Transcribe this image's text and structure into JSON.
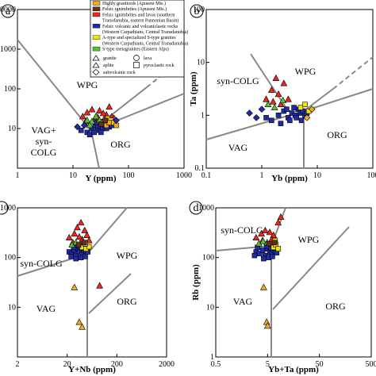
{
  "legend": {
    "entries": [
      {
        "label": "Highly granitoids (Apuseni Mts.)",
        "color": "#f5a623"
      },
      {
        "label": "Felsic ignimbrites (Apuseni Mts.)",
        "color": "#6b2d1a"
      },
      {
        "label": "Felsic ignimbrites and lavas (southern",
        "color": "#e8291c"
      },
      {
        "label": "Transdanubia, eastern Pannonian Basin)",
        "color": ""
      },
      {
        "label": "Felsic volcanic and volcaniclastic rocks",
        "color": "#1f2ba8"
      },
      {
        "label": "(Western Carpathians, Central Transdanubia)",
        "color": ""
      },
      {
        "label": "A-type and specialized S-type granites",
        "color": "#f2e600"
      },
      {
        "label": "(Western Carpathians, Central Transdanubia)",
        "color": ""
      },
      {
        "label": "S-type metagranites (Eastern Alps)",
        "color": "#56c43a"
      }
    ],
    "symbols": [
      {
        "shape": "triangle",
        "label": "granite"
      },
      {
        "shape": "circle",
        "label": "lava"
      },
      {
        "shape": "triangle",
        "label": "aplite"
      },
      {
        "shape": "square",
        "label": "pyroclastic rock"
      },
      {
        "shape": "diamond",
        "label": "subvolcanic rock"
      }
    ]
  },
  "chart_data": [
    {
      "type": "scatter",
      "panel_letter": "a",
      "xlabel": "Y (ppm)",
      "ylabel": "",
      "xscale": "log",
      "yscale": "log",
      "xlim": [
        1,
        1000
      ],
      "ylim": [
        1,
        10000
      ],
      "xticks": [
        "1",
        "10",
        "100",
        "1000"
      ],
      "yticks": [
        "",
        "10",
        "100",
        "1000",
        "10000"
      ],
      "fields": [
        "WPG",
        "VAG+",
        "syn-",
        "COLG",
        "ORG"
      ],
      "series": [
        {
          "color": "#1f2ba8",
          "marker": "square",
          "points": [
            [
              14,
              9
            ],
            [
              18,
              8
            ],
            [
              22,
              10
            ],
            [
              25,
              12
            ],
            [
              28,
              11
            ],
            [
              30,
              9
            ],
            [
              34,
              10
            ],
            [
              38,
              12
            ],
            [
              42,
              14
            ],
            [
              45,
              11
            ],
            [
              48,
              13
            ],
            [
              20,
              7
            ],
            [
              24,
              8
            ],
            [
              32,
              8
            ],
            [
              36,
              15
            ],
            [
              40,
              10
            ],
            [
              50,
              12
            ],
            [
              55,
              15
            ],
            [
              26,
              14
            ],
            [
              44,
              16
            ]
          ]
        },
        {
          "color": "#e8291c",
          "marker": "triangle",
          "points": [
            [
              15,
              20
            ],
            [
              18,
              25
            ],
            [
              22,
              30
            ],
            [
              30,
              28
            ],
            [
              40,
              22
            ],
            [
              45,
              35
            ],
            [
              25,
              18
            ],
            [
              35,
              24
            ],
            [
              50,
              20
            ],
            [
              55,
              18
            ],
            [
              17,
              15
            ],
            [
              28,
              19
            ]
          ]
        },
        {
          "color": "#56c43a",
          "marker": "triangle",
          "points": [
            [
              18,
              16
            ],
            [
              22,
              15
            ],
            [
              26,
              20
            ],
            [
              30,
              16
            ],
            [
              20,
              12
            ]
          ]
        },
        {
          "color": "#f2e600",
          "marker": "square",
          "points": [
            [
              35,
              14
            ],
            [
              42,
              18
            ],
            [
              48,
              16
            ],
            [
              55,
              14
            ]
          ]
        },
        {
          "color": "#f5a623",
          "marker": "square",
          "points": [
            [
              40,
              12
            ],
            [
              45,
              14
            ],
            [
              60,
              12
            ]
          ]
        },
        {
          "color": "#6b2d1a",
          "marker": "square",
          "points": [
            [
              32,
              13
            ],
            [
              38,
              16
            ]
          ]
        },
        {
          "color": "#1f2ba8",
          "marker": "diamond",
          "points": [
            [
              12,
              11
            ],
            [
              16,
              12
            ],
            [
              60,
              16
            ]
          ]
        }
      ]
    },
    {
      "type": "scatter",
      "panel_letter": "b",
      "xlabel": "Yb (ppm)",
      "ylabel": "Ta (ppm)",
      "xscale": "log",
      "yscale": "log",
      "xlim": [
        0.1,
        100
      ],
      "ylim": [
        0.1,
        100
      ],
      "xticks": [
        "0.1",
        "1",
        "10",
        "100"
      ],
      "yticks": [
        "0.1",
        "1",
        "10",
        "100"
      ],
      "fields": [
        "syn-COLG",
        "WPG",
        "VAG",
        "ORG"
      ],
      "series": [
        {
          "color": "#1f2ba8",
          "marker": "square",
          "points": [
            [
              1.5,
              0.8
            ],
            [
              2,
              1
            ],
            [
              2.5,
              1.2
            ],
            [
              3,
              0.9
            ],
            [
              3.5,
              1.1
            ],
            [
              4,
              1
            ],
            [
              4.5,
              1.3
            ],
            [
              5,
              1.1
            ],
            [
              5.5,
              1.2
            ],
            [
              6,
              1
            ],
            [
              2.2,
              0.7
            ],
            [
              3.2,
              0.8
            ],
            [
              4.2,
              0.9
            ],
            [
              5.2,
              0.8
            ],
            [
              6.5,
              1.1
            ],
            [
              3.8,
              1.4
            ],
            [
              2.8,
              1.3
            ],
            [
              1.2,
              0.9
            ]
          ]
        },
        {
          "color": "#e8291c",
          "marker": "triangle",
          "points": [
            [
              1.2,
              2
            ],
            [
              1.5,
              3
            ],
            [
              2,
              2.5
            ],
            [
              2.5,
              4
            ],
            [
              1.8,
              5
            ],
            [
              3,
              2
            ],
            [
              1.6,
              1.8
            ],
            [
              2.2,
              1.6
            ]
          ]
        },
        {
          "color": "#56c43a",
          "marker": "triangle",
          "points": [
            [
              1.3,
              1.6
            ],
            [
              1.7,
              1.4
            ],
            [
              2.4,
              1.9
            ]
          ]
        },
        {
          "color": "#f2e600",
          "marker": "square",
          "points": [
            [
              5,
              1.4
            ],
            [
              6,
              1.6
            ],
            [
              7,
              1.2
            ]
          ]
        },
        {
          "color": "#f5a623",
          "marker": "diamond",
          "points": [
            [
              8,
              1.3
            ],
            [
              6.5,
              0.9
            ]
          ]
        },
        {
          "color": "#1f2ba8",
          "marker": "diamond",
          "points": [
            [
              0.6,
              1.1
            ],
            [
              0.8,
              0.9
            ],
            [
              1,
              1.3
            ]
          ]
        }
      ]
    },
    {
      "type": "scatter",
      "panel_letter": "c",
      "xlabel": "Y+Nb (ppm)",
      "ylabel": "",
      "xscale": "log",
      "yscale": "log",
      "xlim": [
        2,
        2000
      ],
      "ylim": [
        1,
        1000
      ],
      "xticks": [
        "2",
        "20",
        "200",
        "2000"
      ],
      "yticks": [
        "",
        "10",
        "100",
        "1000"
      ],
      "fields": [
        "syn-COLG",
        "WPG",
        "VAG",
        "ORG"
      ],
      "series": [
        {
          "color": "#1f2ba8",
          "marker": "square",
          "points": [
            [
              22,
              130
            ],
            [
              25,
              120
            ],
            [
              28,
              140
            ],
            [
              30,
              110
            ],
            [
              33,
              150
            ],
            [
              36,
              130
            ],
            [
              40,
              120
            ],
            [
              44,
              140
            ],
            [
              48,
              135
            ],
            [
              52,
              130
            ],
            [
              27,
              160
            ],
            [
              35,
              170
            ],
            [
              42,
              155
            ],
            [
              30,
              95
            ],
            [
              38,
              100
            ],
            [
              46,
              105
            ],
            [
              24,
              105
            ]
          ]
        },
        {
          "color": "#e8291c",
          "marker": "triangle",
          "points": [
            [
              22,
              250
            ],
            [
              28,
              300
            ],
            [
              32,
              400
            ],
            [
              38,
              500
            ],
            [
              45,
              350
            ],
            [
              50,
              280
            ],
            [
              26,
              200
            ],
            [
              40,
              230
            ],
            [
              55,
              220
            ],
            [
              35,
              260
            ]
          ]
        },
        {
          "color": "#56c43a",
          "marker": "triangle",
          "points": [
            [
              25,
              180
            ],
            [
              30,
              200
            ],
            [
              36,
              190
            ],
            [
              42,
              175
            ]
          ]
        },
        {
          "color": "#f2e600",
          "marker": "square",
          "points": [
            [
              40,
              160
            ],
            [
              48,
              150
            ],
            [
              55,
              165
            ],
            [
              46,
              190
            ]
          ]
        },
        {
          "color": "#f5a623",
          "marker": "triangle",
          "points": [
            [
              28,
              25
            ],
            [
              35,
              5
            ],
            [
              40,
              4
            ]
          ]
        },
        {
          "color": "#6b2d1a",
          "marker": "square",
          "points": [
            [
              34,
              180
            ],
            [
              44,
              200
            ]
          ]
        },
        {
          "color": "#e8291c",
          "marker": "triangle",
          "points": [
            [
              90,
              27
            ]
          ]
        }
      ]
    },
    {
      "type": "scatter",
      "panel_letter": "d",
      "xlabel": "Yb+Ta (ppm)",
      "ylabel": "Rb (ppm)",
      "xscale": "log",
      "yscale": "log",
      "xlim": [
        0.5,
        500
      ],
      "ylim": [
        1,
        1000
      ],
      "xticks": [
        "0.5",
        "5",
        "50",
        "500"
      ],
      "yticks": [
        "1",
        "10",
        "100",
        "1000"
      ],
      "fields": [
        "syn-COLG",
        "WPG",
        "VAG",
        "ORG"
      ],
      "series": [
        {
          "color": "#1f2ba8",
          "marker": "square",
          "points": [
            [
              3,
              130
            ],
            [
              3.5,
              120
            ],
            [
              4,
              140
            ],
            [
              4.5,
              110
            ],
            [
              5,
              150
            ],
            [
              5.5,
              130
            ],
            [
              6,
              120
            ],
            [
              6.5,
              140
            ],
            [
              7,
              135
            ],
            [
              3.2,
              160
            ],
            [
              4.8,
              170
            ],
            [
              5.8,
              155
            ],
            [
              4.2,
              95
            ],
            [
              5.2,
              100
            ],
            [
              6.2,
              105
            ],
            [
              2.8,
              110
            ],
            [
              7.5,
              125
            ]
          ]
        },
        {
          "color": "#e8291c",
          "marker": "triangle",
          "points": [
            [
              3,
              250
            ],
            [
              3.8,
              300
            ],
            [
              4.5,
              350
            ],
            [
              5.5,
              320
            ],
            [
              6.5,
              280
            ],
            [
              8,
              500
            ],
            [
              9,
              650
            ],
            [
              4,
              220
            ],
            [
              6,
              230
            ]
          ]
        },
        {
          "color": "#56c43a",
          "marker": "triangle",
          "points": [
            [
              3.4,
              190
            ],
            [
              4.1,
              210
            ],
            [
              4.9,
              200
            ]
          ]
        },
        {
          "color": "#f2e600",
          "marker": "square",
          "points": [
            [
              6.5,
              160
            ],
            [
              7.2,
              180
            ],
            [
              8,
              150
            ],
            [
              7,
              220
            ]
          ]
        },
        {
          "color": "#f5a623",
          "marker": "triangle",
          "points": [
            [
              4.2,
              25
            ],
            [
              4.8,
              5
            ],
            [
              5,
              4.2
            ]
          ]
        },
        {
          "color": "#6b2d1a",
          "marker": "square",
          "points": [
            [
              5.3,
              190
            ],
            [
              6.8,
              200
            ]
          ]
        }
      ]
    }
  ]
}
